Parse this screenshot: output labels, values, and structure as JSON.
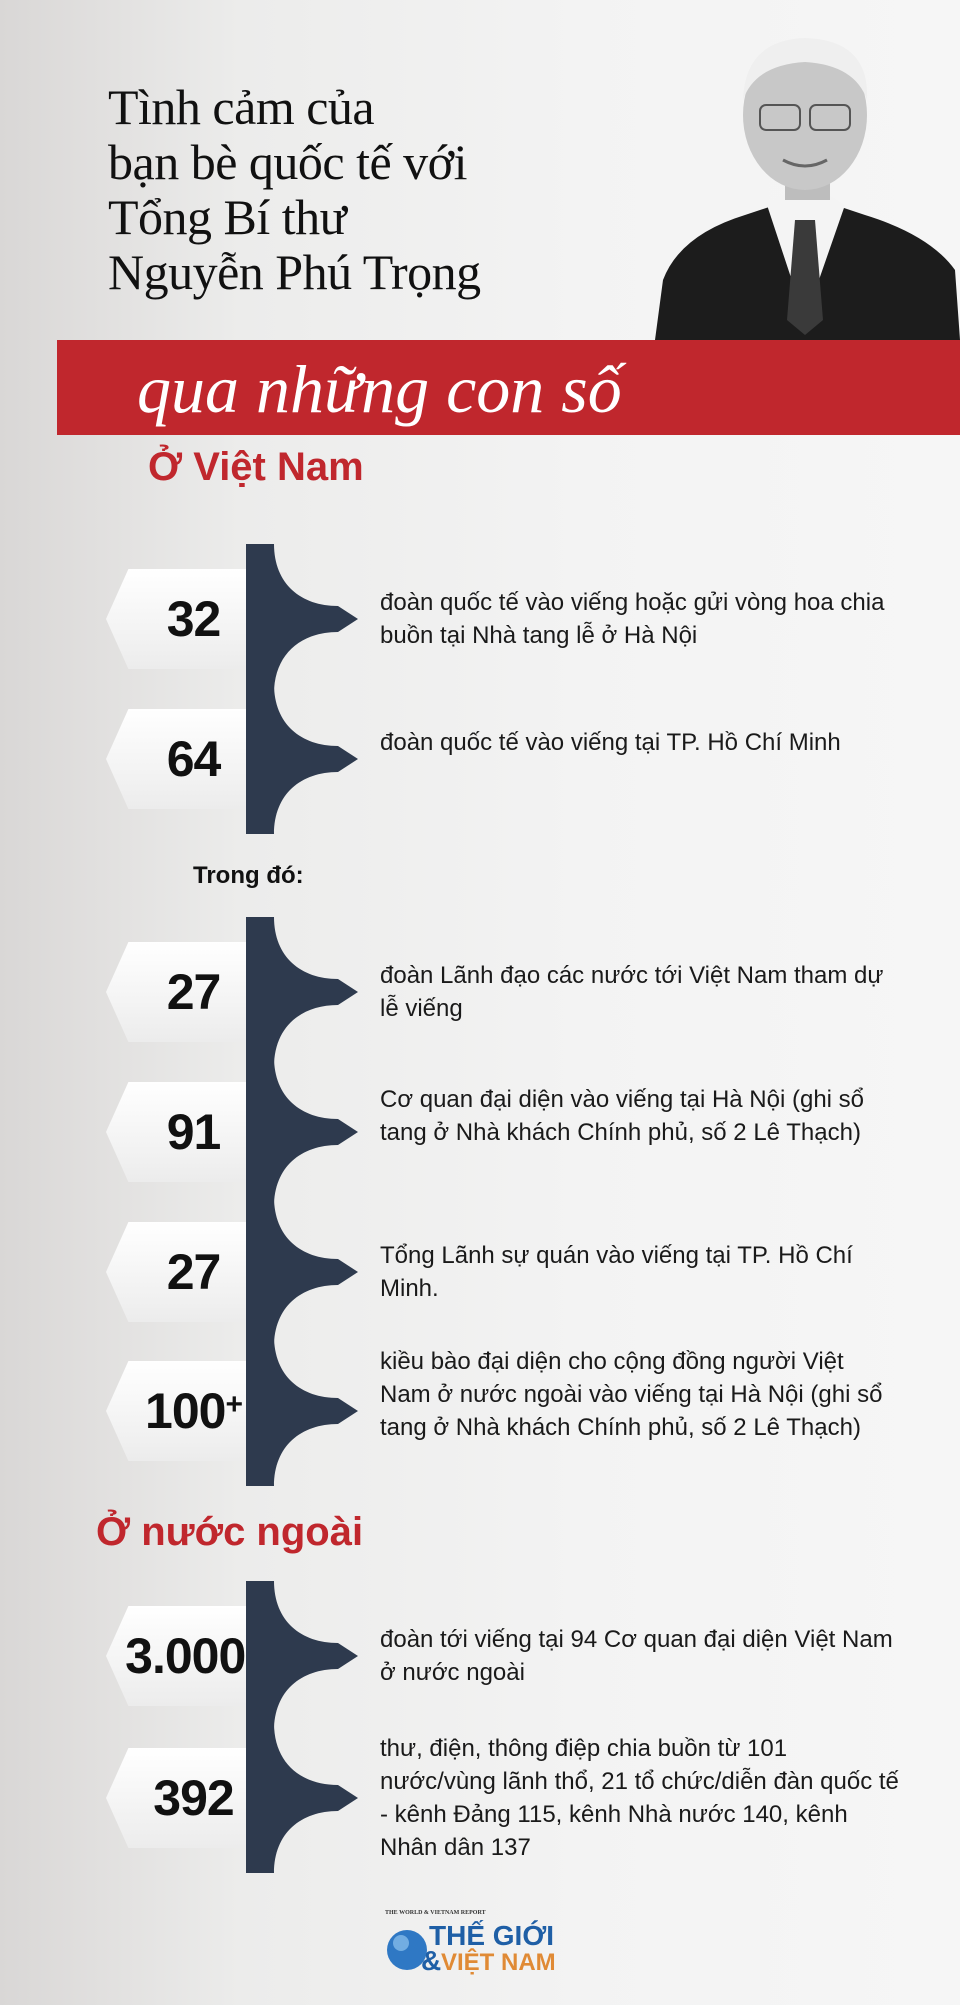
{
  "title": {
    "lines": [
      "Tình cảm của",
      "bạn bè quốc tế với",
      "Tổng Bí thư",
      "Nguyễn Phú Trọng"
    ],
    "banner": "qua những con số"
  },
  "colors": {
    "accent": "#c0272d",
    "brace": "#2e3a4e"
  },
  "sections": {
    "vietnam": "Ở Việt Nam",
    "abroad": "Ở nước ngoài",
    "sub": "Trong đó:"
  },
  "stats": [
    {
      "value": "32",
      "sup": "",
      "text": "đoàn quốc tế vào viếng hoặc gửi vòng hoa chia buồn tại Nhà tang lễ ở Hà Nội"
    },
    {
      "value": "64",
      "sup": "",
      "text": "đoàn quốc tế vào viếng tại TP. Hồ Chí Minh"
    },
    {
      "value": "27",
      "sup": "",
      "text": "đoàn Lãnh đạo các nước tới Việt Nam tham dự lễ viếng"
    },
    {
      "value": "91",
      "sup": "",
      "text": "Cơ quan đại diện vào viếng tại Hà Nội (ghi sổ tang ở Nhà khách Chính phủ, số 2 Lê Thạch)"
    },
    {
      "value": "27",
      "sup": "",
      "text": "Tổng Lãnh sự quán vào viếng tại TP. Hồ Chí Minh."
    },
    {
      "value": "100",
      "sup": "+",
      "text": "kiều bào đại diện cho cộng đồng người Việt Nam ở nước ngoài vào viếng tại Hà Nội (ghi sổ tang ở Nhà khách Chính phủ, số 2 Lê Thạch)"
    },
    {
      "value": "3.000",
      "sup": "+",
      "text": "đoàn tới viếng tại 94 Cơ quan đại diện Việt Nam ở nước ngoài"
    },
    {
      "value": "392",
      "sup": "",
      "text": "thư, điện, thông điệp chia buồn từ 101 nước/vùng lãnh thổ, 21 tổ chức/diễn đàn quốc tế - kênh Đảng 115, kênh Nhà nước 140, kênh Nhân dân 137"
    }
  ],
  "logo": {
    "top": "THE WORLD & VIETNAM REPORT",
    "line1": "THẾ GIỚI",
    "line2": "VIỆT NAM",
    "amp": "&"
  }
}
